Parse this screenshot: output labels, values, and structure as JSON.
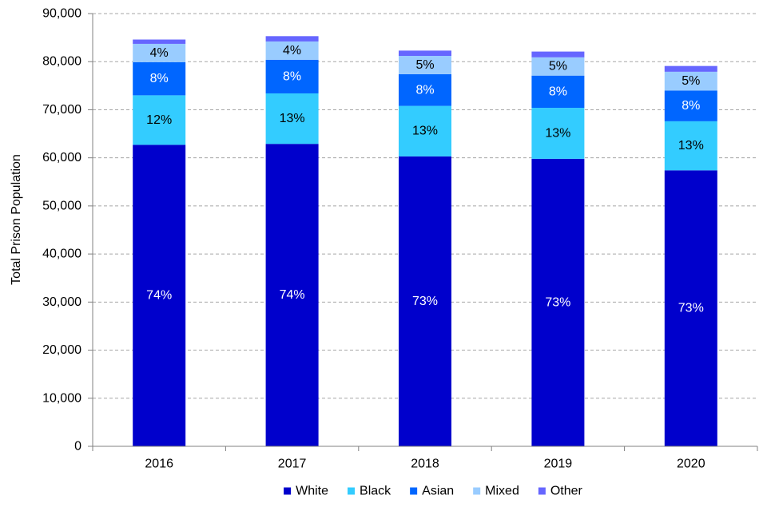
{
  "chart_data": {
    "type": "bar",
    "stacked": true,
    "ylabel": "Total Prison Population",
    "xlabel": "",
    "ylim": [
      0,
      90000
    ],
    "yticks": [
      0,
      10000,
      20000,
      30000,
      40000,
      50000,
      60000,
      70000,
      80000,
      90000
    ],
    "ytick_labels": [
      "0",
      "10,000",
      "20,000",
      "30,000",
      "40,000",
      "50,000",
      "60,000",
      "70,000",
      "80,000",
      "90,000"
    ],
    "grid": "horizontal-dashed",
    "legend_position": "bottom",
    "categories": [
      "2016",
      "2017",
      "2018",
      "2019",
      "2020"
    ],
    "series": [
      {
        "name": "White",
        "color": "#0000CC",
        "label_color": "#ffffff",
        "values": [
          62700,
          62900,
          60300,
          59800,
          57400
        ],
        "labels": [
          "74%",
          "74%",
          "73%",
          "73%",
          "73%"
        ]
      },
      {
        "name": "Black",
        "color": "#33CCFF",
        "label_color": "#000000",
        "values": [
          10300,
          10500,
          10500,
          10600,
          10200
        ],
        "labels": [
          "12%",
          "13%",
          "13%",
          "13%",
          "13%"
        ]
      },
      {
        "name": "Asian",
        "color": "#0066FF",
        "label_color": "#ffffff",
        "values": [
          6900,
          7000,
          6600,
          6700,
          6400
        ],
        "labels": [
          "8%",
          "8%",
          "8%",
          "8%",
          "8%"
        ]
      },
      {
        "name": "Mixed",
        "color": "#99CCFF",
        "label_color": "#000000",
        "values": [
          3800,
          3800,
          3800,
          3800,
          3900
        ],
        "labels": [
          "4%",
          "4%",
          "5%",
          "5%",
          "5%"
        ]
      },
      {
        "name": "Other",
        "color": "#6666FF",
        "label_color": "#000000",
        "values": [
          900,
          1100,
          1100,
          1200,
          1200
        ],
        "labels": [
          "",
          "",
          "",
          "",
          ""
        ]
      }
    ]
  }
}
